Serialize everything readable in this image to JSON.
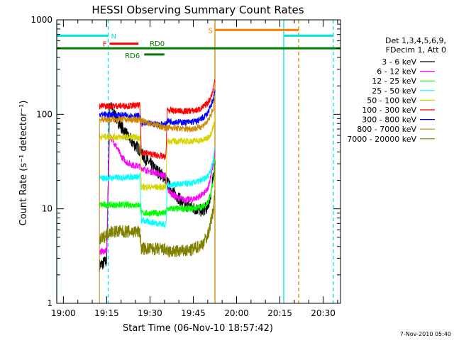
{
  "chart_data": {
    "type": "line",
    "title": "HESSI Observing Summary Count Rates",
    "xlabel": "Start Time (06-Nov-10 18:57:42)",
    "ylabel": "Count Rate (s⁻¹ detector⁻¹)",
    "yscale": "log",
    "ylim": [
      1,
      1000
    ],
    "xlim": [
      "18:57:42",
      "20:36:00"
    ],
    "x_ticks": [
      "19:00",
      "19:15",
      "19:30",
      "19:45",
      "20:00",
      "20:15",
      "20:30"
    ],
    "y_ticks": [
      "1",
      "10",
      "100",
      "1000"
    ],
    "legend_header": [
      "Det 1,3,4,5,6,9,",
      "FDecim 1, Att 0"
    ],
    "legend_position": "right",
    "footer": "7-Nov-2010 05:40",
    "annotations": {
      "cyan_level": 680,
      "orange_level": 780,
      "flags": [
        {
          "label": "N",
          "color": "#00e5e5",
          "start": "18:57:42",
          "end": "19:15:30",
          "level": 680
        },
        {
          "label": "F",
          "color": "#ff0000",
          "start": "19:16:00",
          "end": "19:26:00",
          "level": 560
        },
        {
          "label": "RD0",
          "color": "#007a00",
          "start": "18:57:42",
          "end": "20:36:00",
          "level": 500
        },
        {
          "label": "RD6",
          "color": "#007a00",
          "start": "19:28:00",
          "end": "19:35:00",
          "level": 430
        },
        {
          "label": "S",
          "color": "#ff8000",
          "start": "19:52:30",
          "end": "20:21:30",
          "level": 780
        }
      ],
      "vertical_lines": [
        {
          "time": "18:57:42",
          "color": "#00e5e5",
          "style": "solid"
        },
        {
          "time": "19:15:30",
          "color": "#00e5e5",
          "style": "dashed"
        },
        {
          "time": "19:52:30",
          "color": "#cc8800",
          "style": "solid"
        },
        {
          "time": "20:16:20",
          "color": "#00e5e5",
          "style": "solid"
        },
        {
          "time": "20:21:30",
          "color": "#cc8800",
          "style": "dashed"
        },
        {
          "time": "20:33:30",
          "color": "#00e5e5",
          "style": "dashed"
        }
      ]
    },
    "series": [
      {
        "name": "3 - 6 keV",
        "color": "#000000",
        "points": [
          [
            "19:12:30",
            2.5
          ],
          [
            "19:15:00",
            2.8
          ],
          [
            "19:16:00",
            130
          ],
          [
            "19:18:00",
            95
          ],
          [
            "19:20:00",
            75
          ],
          [
            "19:22:00",
            60
          ],
          [
            "19:24:00",
            50
          ],
          [
            "19:26:30",
            42
          ],
          [
            "19:28:00",
            35
          ],
          [
            "19:30:00",
            30
          ],
          [
            "19:32:00",
            26
          ],
          [
            "19:34:00",
            23
          ],
          [
            "19:35:30",
            21
          ],
          [
            "19:36:00",
            19
          ],
          [
            "19:38:00",
            15
          ],
          [
            "19:40:00",
            13
          ],
          [
            "19:42:00",
            11
          ],
          [
            "19:44:00",
            10.5
          ],
          [
            "19:46:00",
            10
          ],
          [
            "19:48:00",
            9.5
          ],
          [
            "19:50:00",
            10.5
          ],
          [
            "19:51:00",
            14
          ],
          [
            "19:52:00",
            22
          ],
          [
            "19:52:30",
            32
          ]
        ]
      },
      {
        "name": "6 - 12 keV",
        "color": "#ff00ff",
        "points": [
          [
            "19:12:30",
            3.5
          ],
          [
            "19:15:00",
            3.6
          ],
          [
            "19:16:00",
            60
          ],
          [
            "19:18:00",
            48
          ],
          [
            "19:20:00",
            36
          ],
          [
            "19:22:00",
            31
          ],
          [
            "19:24:00",
            29
          ],
          [
            "19:26:30",
            28
          ],
          [
            "19:28:00",
            26
          ],
          [
            "19:30:00",
            25
          ],
          [
            "19:32:00",
            24
          ],
          [
            "19:34:00",
            23
          ],
          [
            "19:35:30",
            22
          ],
          [
            "19:36:00",
            16
          ],
          [
            "19:38:00",
            14
          ],
          [
            "19:40:00",
            13
          ],
          [
            "19:42:00",
            12.5
          ],
          [
            "19:44:00",
            12.5
          ],
          [
            "19:46:00",
            13
          ],
          [
            "19:48:00",
            14
          ],
          [
            "19:50:00",
            16
          ],
          [
            "19:51:00",
            22
          ],
          [
            "19:52:00",
            30
          ],
          [
            "19:52:30",
            42
          ]
        ]
      },
      {
        "name": "12 - 25 keV",
        "color": "#00ff00",
        "points": [
          [
            "19:12:30",
            11
          ],
          [
            "19:26:30",
            11
          ],
          [
            "19:27:00",
            9
          ],
          [
            "19:35:30",
            9
          ],
          [
            "19:36:00",
            10
          ],
          [
            "19:44:00",
            10
          ],
          [
            "19:48:00",
            10.5
          ],
          [
            "19:50:00",
            11.5
          ],
          [
            "19:51:00",
            14
          ],
          [
            "19:52:00",
            20
          ],
          [
            "19:52:30",
            35
          ]
        ]
      },
      {
        "name": "25 - 50 keV",
        "color": "#00ffff",
        "points": [
          [
            "19:12:30",
            21
          ],
          [
            "19:26:30",
            22
          ],
          [
            "19:27:00",
            7.5
          ],
          [
            "19:35:30",
            6.8
          ],
          [
            "19:36:00",
            18
          ],
          [
            "19:44:00",
            18.5
          ],
          [
            "19:48:00",
            20
          ],
          [
            "19:50:00",
            22
          ],
          [
            "19:51:00",
            26
          ],
          [
            "19:52:00",
            33
          ],
          [
            "19:52:30",
            48
          ]
        ]
      },
      {
        "name": "50 - 100 keV",
        "color": "#d4d400",
        "points": [
          [
            "19:12:30",
            58
          ],
          [
            "19:26:30",
            57
          ],
          [
            "19:27:00",
            17
          ],
          [
            "19:35:30",
            17
          ],
          [
            "19:36:00",
            52
          ],
          [
            "19:44:00",
            52
          ],
          [
            "19:48:00",
            53
          ],
          [
            "19:50:00",
            56
          ],
          [
            "19:51:00",
            62
          ],
          [
            "19:52:00",
            75
          ],
          [
            "19:52:30",
            95
          ]
        ]
      },
      {
        "name": "100 - 300 keV",
        "color": "#ff0000",
        "points": [
          [
            "19:12:30",
            122
          ],
          [
            "19:26:30",
            124
          ],
          [
            "19:27:00",
            40
          ],
          [
            "19:35:30",
            35
          ],
          [
            "19:36:00",
            110
          ],
          [
            "19:42:00",
            108
          ],
          [
            "19:46:00",
            110
          ],
          [
            "19:48:00",
            116
          ],
          [
            "19:50:00",
            132
          ],
          [
            "19:51:00",
            150
          ],
          [
            "19:52:00",
            185
          ],
          [
            "19:52:30",
            240
          ]
        ]
      },
      {
        "name": "300 - 800 keV",
        "color": "#0000ff",
        "points": [
          [
            "19:12:30",
            100
          ],
          [
            "19:26:30",
            96
          ],
          [
            "19:27:00",
            80
          ],
          [
            "19:35:30",
            78
          ],
          [
            "19:36:00",
            85
          ],
          [
            "19:42:00",
            82
          ],
          [
            "19:46:00",
            84
          ],
          [
            "19:48:00",
            90
          ],
          [
            "19:50:00",
            103
          ],
          [
            "19:51:00",
            120
          ],
          [
            "19:52:00",
            148
          ],
          [
            "19:52:30",
            185
          ]
        ]
      },
      {
        "name": "800 - 7000 keV",
        "color": "#cc8800",
        "points": [
          [
            "19:12:30",
            88
          ],
          [
            "19:26:30",
            88
          ],
          [
            "19:27:00",
            85
          ],
          [
            "19:35:30",
            72
          ],
          [
            "19:36:00",
            73
          ],
          [
            "19:42:00",
            70
          ],
          [
            "19:46:00",
            71
          ],
          [
            "19:48:00",
            75
          ],
          [
            "19:50:00",
            84
          ],
          [
            "19:51:00",
            97
          ],
          [
            "19:52:00",
            118
          ],
          [
            "19:52:30",
            150
          ]
        ]
      },
      {
        "name": "7000 - 20000 keV",
        "color": "#808000",
        "points": [
          [
            "19:12:30",
            4.5
          ],
          [
            "19:16:00",
            5.8
          ],
          [
            "19:26:30",
            5.7
          ],
          [
            "19:27:00",
            3.8
          ],
          [
            "19:35:30",
            3.7
          ],
          [
            "19:36:00",
            3.5
          ],
          [
            "19:44:00",
            3.6
          ],
          [
            "19:48:00",
            4.2
          ],
          [
            "19:50:00",
            5.2
          ],
          [
            "19:51:00",
            7
          ],
          [
            "19:52:00",
            10
          ],
          [
            "19:52:30",
            15
          ]
        ]
      }
    ]
  }
}
